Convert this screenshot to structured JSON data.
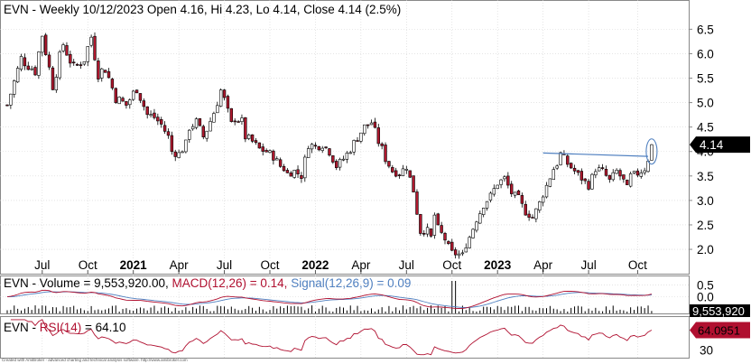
{
  "main_panel": {
    "header": "EVN - Weekly 10/12/2023 Open 4.16, Hi 4.23, Lo 4.14, Close 4.14 (2.5%)",
    "last_price_tag": "4.14"
  },
  "volume_panel": {
    "header_parts": [
      {
        "text": "EVN - Volume = 9,553,920.00, ",
        "color": "#000000"
      },
      {
        "text": "MACD(12,26) = 0.14, ",
        "color": "#b01030"
      },
      {
        "text": "Signal(12,26,9) = 0.09",
        "color": "#5080c0"
      }
    ],
    "value_tag": "9,553,920"
  },
  "rsi_panel": {
    "header_parts": [
      {
        "text": "EVN - ",
        "color": "#000000"
      },
      {
        "text": "RSI(14)",
        "color": "#b01030"
      },
      {
        "text": " = 64.10",
        "color": "#000000"
      }
    ],
    "value_tag": "64.0951"
  },
  "footer": "Created with AmiBroker - advanced charting and technical analysis software. http://www.amibroker.com",
  "colors": {
    "up": "#ffffff",
    "down": "#b0182e",
    "candle_outline": "#000000",
    "trendline": "#5080c0",
    "macd": "#b01030",
    "signal": "#5080c0",
    "rsi": "#b01030",
    "grid": "#d4d4d4"
  },
  "chart_data": [
    {
      "type": "candlestick",
      "title": "EVN - Weekly",
      "x_tick_labels": [
        "Jul",
        "Oct",
        "2021",
        "Apr",
        "Jul",
        "Oct",
        "2022",
        "Apr",
        "Jul",
        "Oct",
        "2023",
        "Apr",
        "Jul",
        "Oct"
      ],
      "y_tick_labels": [
        "2.0",
        "2.5",
        "3.0",
        "3.5",
        "4.0",
        "4.5",
        "5.0",
        "5.5",
        "6.0",
        "6.5"
      ],
      "ylim": [
        1.65,
        6.95
      ],
      "annotations": [
        "trendline from Apr 2023 high (~3.97) to early Dec 2023 (~3.90)",
        "circle around last candle"
      ],
      "close_path": [
        [
          0,
          4.95
        ],
        [
          4,
          5.9
        ],
        [
          8,
          5.65
        ],
        [
          10,
          6.4
        ],
        [
          13,
          5.35
        ],
        [
          16,
          6.2
        ],
        [
          19,
          5.7
        ],
        [
          22,
          5.9
        ],
        [
          24,
          6.35
        ],
        [
          26,
          5.6
        ],
        [
          28,
          5.7
        ],
        [
          31,
          5.1
        ],
        [
          34,
          4.95
        ],
        [
          37,
          5.3
        ],
        [
          40,
          4.75
        ],
        [
          42,
          4.7
        ],
        [
          44,
          4.55
        ],
        [
          46,
          4.3
        ],
        [
          47,
          4.0
        ],
        [
          49,
          3.95
        ],
        [
          51,
          4.15
        ],
        [
          52,
          4.5
        ],
        [
          54,
          4.6
        ],
        [
          56,
          4.3
        ],
        [
          57,
          4.45
        ],
        [
          59,
          4.8
        ],
        [
          61,
          5.25
        ],
        [
          62,
          5.05
        ],
        [
          64,
          4.55
        ],
        [
          65,
          4.7
        ],
        [
          67,
          4.6
        ],
        [
          68,
          4.3
        ],
        [
          70,
          4.2
        ],
        [
          72,
          4.05
        ],
        [
          74,
          4.0
        ],
        [
          76,
          3.9
        ],
        [
          78,
          3.7
        ],
        [
          79,
          3.65
        ],
        [
          80,
          3.55
        ],
        [
          82,
          3.6
        ],
        [
          84,
          3.5
        ],
        [
          86,
          4.15
        ],
        [
          88,
          4.1
        ],
        [
          90,
          4.15
        ],
        [
          92,
          4.0
        ],
        [
          94,
          3.7
        ],
        [
          96,
          3.85
        ],
        [
          98,
          4.05
        ],
        [
          100,
          4.3
        ],
        [
          102,
          4.5
        ],
        [
          104,
          4.6
        ],
        [
          106,
          4.2
        ],
        [
          107,
          4.05
        ],
        [
          108,
          3.85
        ],
        [
          110,
          3.6
        ],
        [
          112,
          3.55
        ],
        [
          114,
          3.7
        ],
        [
          116,
          3.2
        ],
        [
          117,
          2.75
        ],
        [
          118,
          2.35
        ],
        [
          120,
          2.4
        ],
        [
          121,
          2.25
        ],
        [
          122,
          2.7
        ],
        [
          123,
          2.45
        ],
        [
          125,
          2.2
        ],
        [
          127,
          1.95
        ],
        [
          128,
          1.9
        ],
        [
          130,
          1.9
        ],
        [
          132,
          2.25
        ],
        [
          134,
          2.6
        ],
        [
          136,
          2.9
        ],
        [
          138,
          3.1
        ],
        [
          140,
          3.35
        ],
        [
          142,
          3.45
        ],
        [
          144,
          3.15
        ],
        [
          146,
          3.05
        ],
        [
          148,
          2.75
        ],
        [
          150,
          2.65
        ],
        [
          152,
          2.95
        ],
        [
          154,
          3.3
        ],
        [
          156,
          3.65
        ],
        [
          157,
          3.75
        ],
        [
          158,
          3.95
        ],
        [
          160,
          3.75
        ],
        [
          162,
          3.6
        ],
        [
          164,
          3.45
        ],
        [
          166,
          3.3
        ],
        [
          168,
          3.65
        ],
        [
          170,
          3.6
        ],
        [
          172,
          3.4
        ],
        [
          174,
          3.6
        ],
        [
          176,
          3.4
        ],
        [
          177,
          3.25
        ],
        [
          178,
          3.5
        ],
        [
          180,
          3.55
        ],
        [
          182,
          3.65
        ],
        [
          183,
          3.85
        ],
        [
          184,
          4.14
        ]
      ]
    },
    {
      "type": "bar+line",
      "title": "EVN - Volume / MACD(12,26) / Signal(12,26,9)",
      "series": [
        {
          "name": "Volume",
          "last": 9553920.0
        },
        {
          "name": "MACD(12,26)",
          "last": 0.14
        },
        {
          "name": "Signal(12,26,9)",
          "last": 0.09
        }
      ],
      "y_tick_labels": [
        "0.5",
        "0.0"
      ],
      "ylim": [
        -0.55,
        0.75
      ]
    },
    {
      "type": "line",
      "title": "EVN - RSI(14)",
      "series": [
        {
          "name": "RSI(14)",
          "last": 64.1
        }
      ],
      "y_tick_labels": [
        "30"
      ],
      "ylim": [
        20,
        85
      ]
    }
  ]
}
